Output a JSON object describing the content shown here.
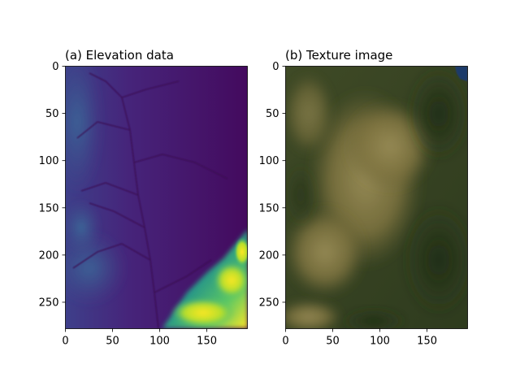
{
  "chart_data": [
    {
      "type": "heatmap",
      "title": "(a) Elevation data",
      "xlabel": "",
      "ylabel": "",
      "xlim": [
        0,
        193
      ],
      "ylim": [
        278,
        0
      ],
      "xticks": [
        0,
        50,
        100,
        150
      ],
      "yticks": [
        0,
        50,
        100,
        150,
        200,
        250
      ],
      "colormap": "viridis",
      "colors": {
        "background": "#44085c",
        "mid": "#3b528b",
        "high": "#5ec962",
        "peak": "#fde725"
      }
    },
    {
      "type": "heatmap",
      "title": "(b) Texture image",
      "xlabel": "",
      "ylabel": "",
      "xlim": [
        0,
        193
      ],
      "ylim": [
        278,
        0
      ],
      "xticks": [
        0,
        50,
        100,
        150
      ],
      "yticks": [
        0,
        50,
        100,
        150,
        200,
        250
      ],
      "colormap": "rgb",
      "colors": {
        "forest": "#2f3f1e",
        "soil": "#8a7a44",
        "light": "#9e9060",
        "water": "#1f3a6a"
      }
    }
  ]
}
